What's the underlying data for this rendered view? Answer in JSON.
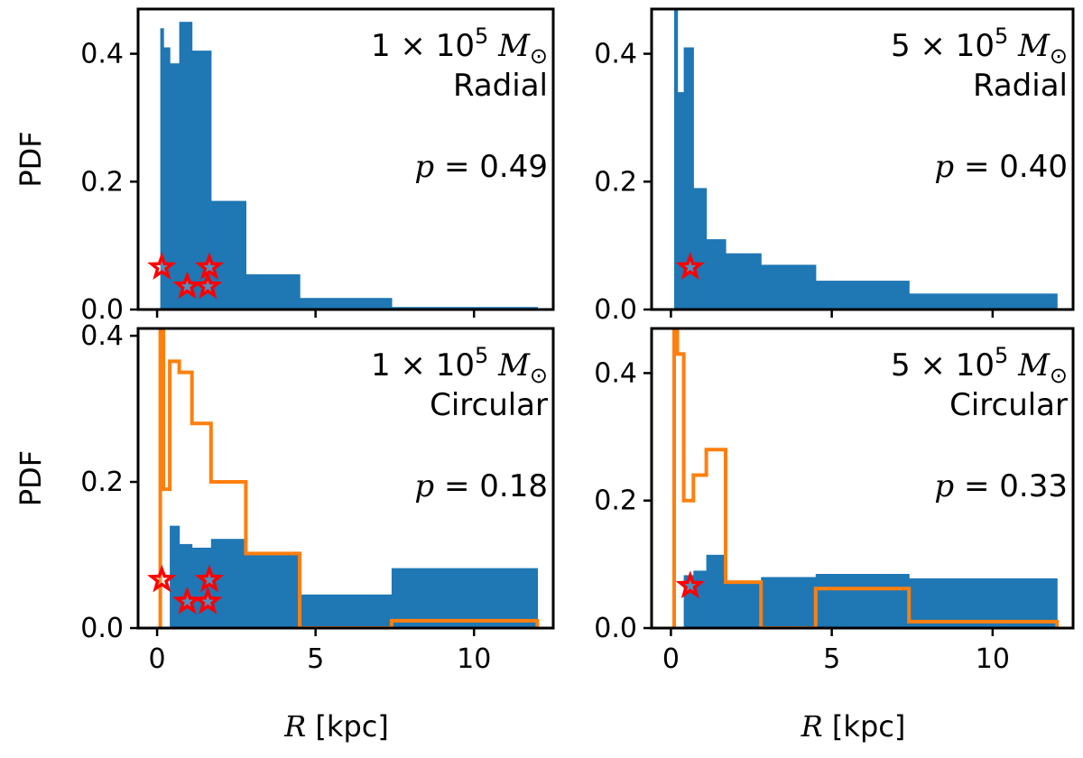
{
  "chart_data": [
    {
      "type": "histogram",
      "panel": "top-left",
      "mass_label": "1 × 10",
      "mass_exp": "5",
      "mass_unit": "M",
      "mass_sub": "⊙",
      "orbit_label": "Radial",
      "p_label": "p = 0.49",
      "xlim": [
        -0.6,
        12.5
      ],
      "ylim": [
        0,
        0.47
      ],
      "ylabel": "PDF",
      "xlabel": "",
      "yticks": [
        0.0,
        0.2,
        0.4
      ],
      "ytick_labels": [
        "0.0",
        "0.2",
        "0.4"
      ],
      "xticks": [
        0,
        5,
        10
      ],
      "xtick_labels": [],
      "edges": [
        0.1,
        0.2,
        0.4,
        0.7,
        1.1,
        1.7,
        2.8,
        4.5,
        7.4,
        12.0
      ],
      "filled_values": [
        0.44,
        0.41,
        0.385,
        0.45,
        0.405,
        0.17,
        0.055,
        0.018,
        0.004
      ],
      "step_values": [],
      "stars": [
        [
          0.15,
          0.066
        ],
        [
          0.95,
          0.036
        ],
        [
          1.6,
          0.036
        ],
        [
          1.65,
          0.066
        ]
      ],
      "colors": {
        "filled": "#1f77b4",
        "step": "#ff7f0e",
        "star": "#ff0000"
      }
    },
    {
      "type": "histogram",
      "panel": "top-right",
      "mass_label": "5 × 10",
      "mass_exp": "5",
      "mass_unit": "M",
      "mass_sub": "⊙",
      "orbit_label": "Radial",
      "p_label": "p = 0.40",
      "xlim": [
        -0.6,
        12.5
      ],
      "ylim": [
        0,
        0.47
      ],
      "ylabel": "",
      "xlabel": "",
      "yticks": [
        0.0,
        0.2,
        0.4
      ],
      "ytick_labels": [
        "0.0",
        "0.2",
        "0.4"
      ],
      "xticks": [
        0,
        5,
        10
      ],
      "xtick_labels": [],
      "edges": [
        0.1,
        0.2,
        0.4,
        0.7,
        1.1,
        1.7,
        2.8,
        4.5,
        7.4,
        12.0
      ],
      "filled_values": [
        0.5,
        0.34,
        0.41,
        0.19,
        0.11,
        0.088,
        0.07,
        0.045,
        0.025
      ],
      "step_values": [],
      "stars": [
        [
          0.6,
          0.066
        ]
      ],
      "colors": {
        "filled": "#1f77b4",
        "step": "#ff7f0e",
        "star": "#ff0000"
      }
    },
    {
      "type": "histogram",
      "panel": "bottom-left",
      "mass_label": "1 × 10",
      "mass_exp": "5",
      "mass_unit": "M",
      "mass_sub": "⊙",
      "orbit_label": "Circular",
      "p_label": "p = 0.18",
      "xlim": [
        -0.6,
        12.5
      ],
      "ylim": [
        0,
        0.41
      ],
      "ylabel": "PDF",
      "xlabel": "R [kpc]",
      "yticks": [
        0.0,
        0.2,
        0.4
      ],
      "ytick_labels": [
        "0.0",
        "0.2",
        "0.4"
      ],
      "xticks": [
        0,
        5,
        10
      ],
      "xtick_labels": [
        "0",
        "5",
        "10"
      ],
      "edges": [
        0.1,
        0.2,
        0.4,
        0.7,
        1.1,
        1.7,
        2.8,
        4.5,
        7.4,
        12.0
      ],
      "filled_values": [
        0.0,
        0.0,
        0.14,
        0.115,
        0.11,
        0.122,
        0.1,
        0.046,
        0.082
      ],
      "step_values": [
        0.5,
        0.19,
        0.365,
        0.35,
        0.28,
        0.2,
        0.102,
        0.0,
        0.01
      ],
      "stars": [
        [
          0.15,
          0.066
        ],
        [
          0.95,
          0.036
        ],
        [
          1.6,
          0.036
        ],
        [
          1.65,
          0.066
        ]
      ],
      "colors": {
        "filled": "#1f77b4",
        "step": "#ff7f0e",
        "star": "#ff0000"
      }
    },
    {
      "type": "histogram",
      "panel": "bottom-right",
      "mass_label": "5 × 10",
      "mass_exp": "5",
      "mass_unit": "M",
      "mass_sub": "⊙",
      "orbit_label": "Circular",
      "p_label": "p = 0.33",
      "xlim": [
        -0.6,
        12.5
      ],
      "ylim": [
        0,
        0.47
      ],
      "ylabel": "",
      "xlabel": "R [kpc]",
      "yticks": [
        0.0,
        0.2,
        0.4
      ],
      "ytick_labels": [
        "0.0",
        "0.2",
        "0.4"
      ],
      "xticks": [
        0,
        5,
        10
      ],
      "xtick_labels": [
        "0",
        "5",
        "10"
      ],
      "edges": [
        0.1,
        0.2,
        0.4,
        0.7,
        1.1,
        1.7,
        2.8,
        4.5,
        7.4,
        12.0
      ],
      "filled_values": [
        0.0,
        0.0,
        0.083,
        0.09,
        0.115,
        0.072,
        0.08,
        0.085,
        0.078
      ],
      "step_values": [
        0.5,
        0.43,
        0.2,
        0.24,
        0.28,
        0.072,
        0.0,
        0.062,
        0.01
      ],
      "stars": [
        [
          0.6,
          0.066
        ]
      ],
      "colors": {
        "filled": "#1f77b4",
        "step": "#ff7f0e",
        "star": "#ff0000"
      }
    }
  ]
}
